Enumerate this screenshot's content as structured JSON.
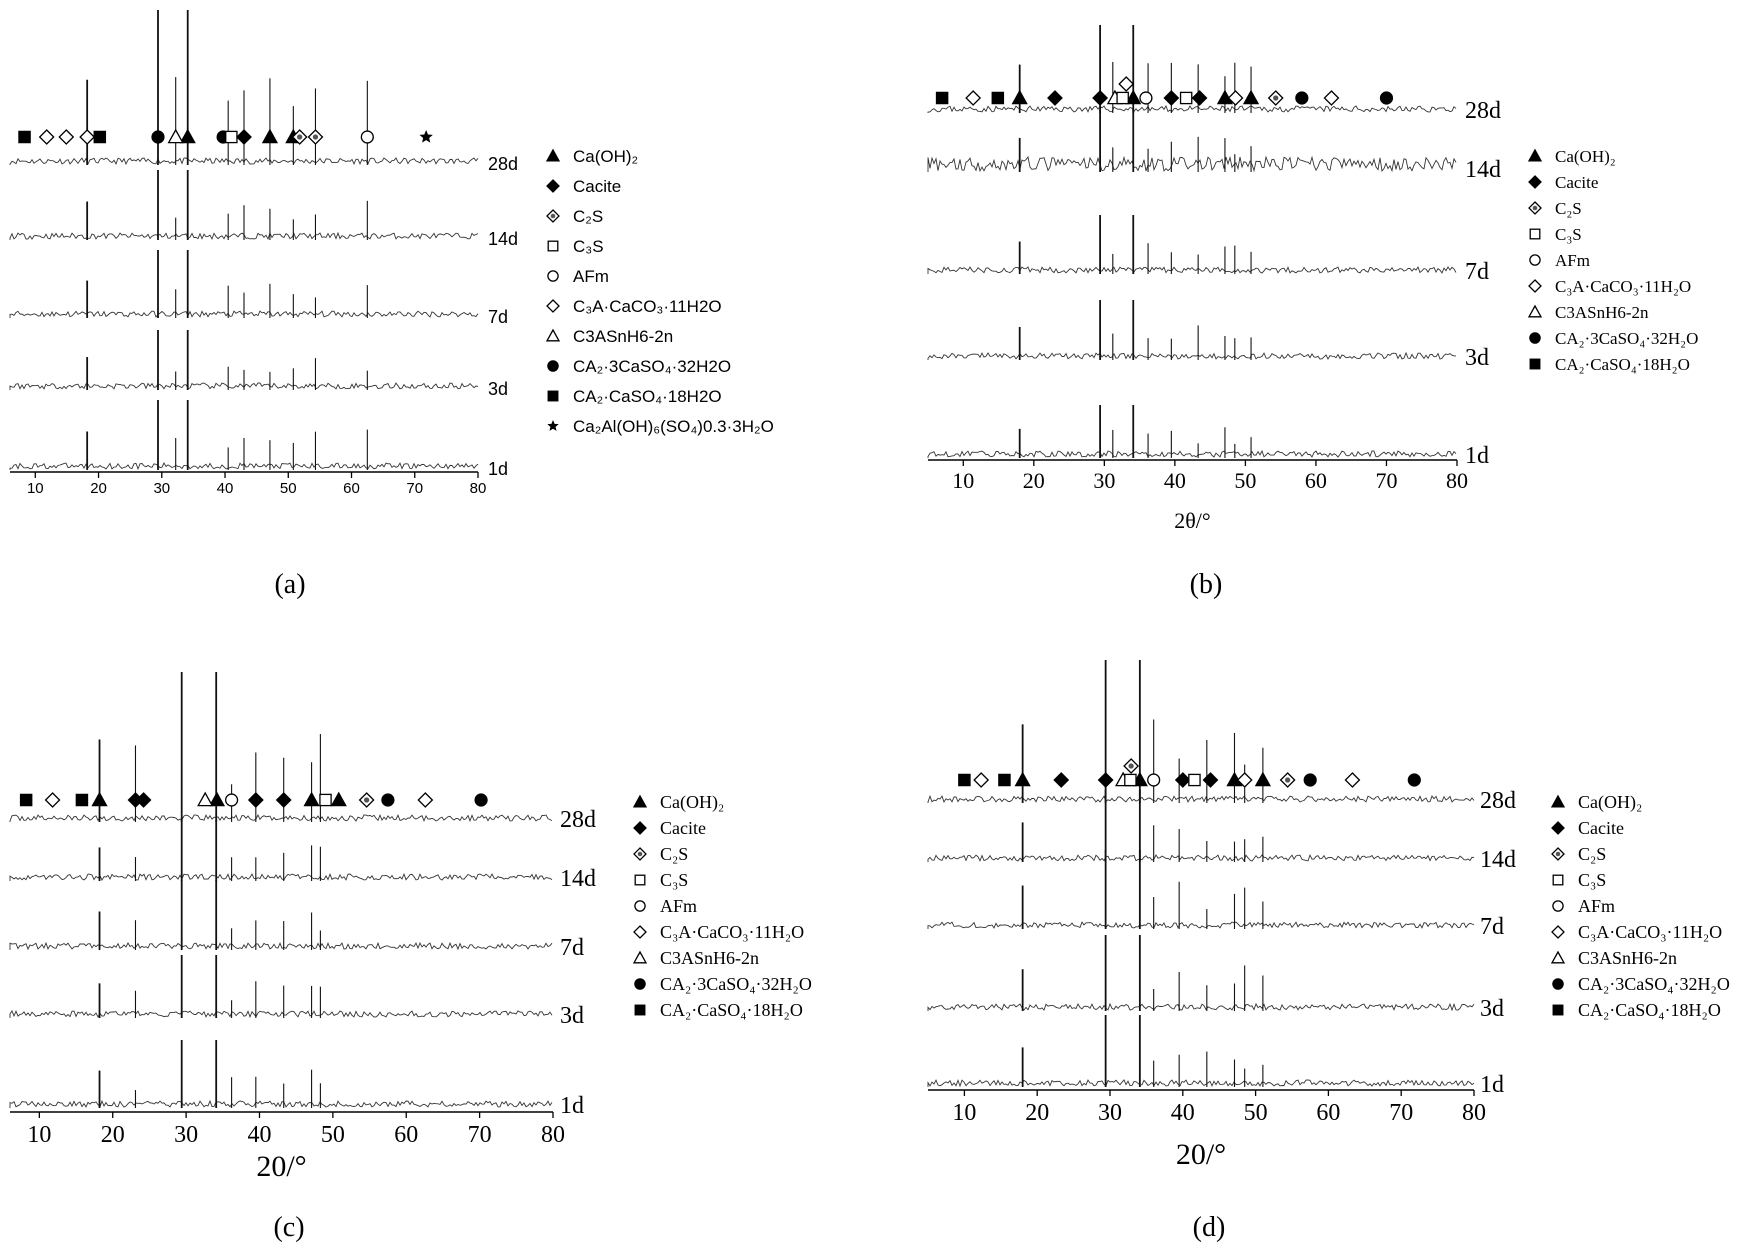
{
  "figure": {
    "panel_captions": [
      "(a)",
      "(b)",
      "(c)",
      "(d)"
    ]
  },
  "chart_data": [
    {
      "type": "line",
      "panel": "(a)",
      "xlabel": "",
      "xlim": [
        6,
        80
      ],
      "xticks": [
        10,
        20,
        30,
        40,
        50,
        60,
        70,
        80
      ],
      "series_labels": [
        "28d",
        "14d",
        "7d",
        "3d",
        "1d"
      ],
      "peaks": [
        18.2,
        29.4,
        34.1,
        47.1,
        50.8,
        32.2,
        40.5,
        43.0,
        54.3,
        62.5
      ],
      "legend": [
        {
          "marker": "triangle-filled",
          "label": "Ca(OH)₂"
        },
        {
          "marker": "diamond-filled",
          "label": "Cacite"
        },
        {
          "marker": "diamond-dot",
          "label": "C₂S"
        },
        {
          "marker": "square-open",
          "label": "C₃S"
        },
        {
          "marker": "circle-open",
          "label": "AFm"
        },
        {
          "marker": "diamond-open",
          "label": "C₃A·CaCO₃·11H2O"
        },
        {
          "marker": "triangle-open",
          "label": "C3ASnH6-2n"
        },
        {
          "marker": "circle-filled",
          "label": "CA₂·3CaSO₄·32H2O"
        },
        {
          "marker": "square-filled",
          "label": "CA₂·CaSO₄·18H2O"
        },
        {
          "marker": "star-filled",
          "label": "Ca₂Al(OH)₆(SO₄)0.3·3H₂O"
        }
      ],
      "phase_markers": [
        {
          "marker": "triangle-filled",
          "x": 34.1
        },
        {
          "marker": "triangle-filled",
          "x": 47.1
        },
        {
          "marker": "triangle-filled",
          "x": 50.8
        },
        {
          "marker": "circle-filled",
          "x": 29.4
        },
        {
          "marker": "diamond-open",
          "x": 18.2
        },
        {
          "marker": "diamond-open",
          "x": 11.8
        },
        {
          "marker": "diamond-open",
          "x": 14.9
        },
        {
          "marker": "triangle-open",
          "x": 32.2
        },
        {
          "marker": "square-filled",
          "x": 8.3
        },
        {
          "marker": "square-filled",
          "x": 20.2
        },
        {
          "marker": "circle-filled",
          "x": 39.7
        },
        {
          "marker": "square-open",
          "x": 41.0
        },
        {
          "marker": "diamond-filled",
          "x": 43.0
        },
        {
          "marker": "diamond-dot",
          "x": 51.8
        },
        {
          "marker": "diamond-dot",
          "x": 54.3
        },
        {
          "marker": "circle-open",
          "x": 62.5
        },
        {
          "marker": "star-filled",
          "x": 71.8
        }
      ]
    },
    {
      "type": "line",
      "panel": "(b)",
      "xlabel": "2θ/°",
      "xlim": [
        5,
        80
      ],
      "xticks": [
        10,
        20,
        30,
        40,
        50,
        60,
        70,
        80
      ],
      "series_labels": [
        "28d",
        "14d",
        "7d",
        "3d",
        "1d"
      ],
      "peaks": [
        18.0,
        29.4,
        34.1,
        47.1,
        48.5,
        39.5,
        43.3,
        31.2,
        36.2,
        50.8
      ],
      "legend": [
        {
          "marker": "triangle-filled",
          "label": "Ca(OH)₂"
        },
        {
          "marker": "diamond-filled",
          "label": "Cacite"
        },
        {
          "marker": "diamond-dot",
          "label": "C₂S"
        },
        {
          "marker": "square-open",
          "label": "C₃S"
        },
        {
          "marker": "circle-open",
          "label": "AFm"
        },
        {
          "marker": "diamond-open",
          "label": "C₃A·CaCO₃·11H₂O"
        },
        {
          "marker": "triangle-open",
          "label": "C3ASnH6-2n"
        },
        {
          "marker": "circle-filled",
          "label": "CA₂·3CaSO₄·32H₂O"
        },
        {
          "marker": "square-filled",
          "label": "CA₂·CaSO₄·18H₂O"
        }
      ],
      "phase_markers": [
        {
          "marker": "square-filled",
          "x": 7.0
        },
        {
          "marker": "diamond-open",
          "x": 11.4
        },
        {
          "marker": "square-filled",
          "x": 14.9
        },
        {
          "marker": "triangle-filled",
          "x": 18.0
        },
        {
          "marker": "diamond-filled",
          "x": 23.0
        },
        {
          "marker": "diamond-filled",
          "x": 29.4
        },
        {
          "marker": "triangle-filled",
          "x": 34.1
        },
        {
          "marker": "triangle-open",
          "x": 31.5
        },
        {
          "marker": "square-open",
          "x": 32.6
        },
        {
          "marker": "diamond-open",
          "x": 33.1
        },
        {
          "marker": "circle-open",
          "x": 35.9
        },
        {
          "marker": "diamond-filled",
          "x": 39.5
        },
        {
          "marker": "diamond-filled",
          "x": 43.5
        },
        {
          "marker": "square-open",
          "x": 41.6
        },
        {
          "marker": "triangle-filled",
          "x": 47.1
        },
        {
          "marker": "diamond-open",
          "x": 48.6
        },
        {
          "marker": "triangle-filled",
          "x": 50.8
        },
        {
          "marker": "diamond-dot",
          "x": 54.3
        },
        {
          "marker": "circle-filled",
          "x": 58.0
        },
        {
          "marker": "diamond-open",
          "x": 62.2
        },
        {
          "marker": "circle-filled",
          "x": 70.0
        }
      ]
    },
    {
      "type": "line",
      "panel": "(c)",
      "xlabel": "20/°",
      "xlim": [
        6,
        80
      ],
      "xticks": [
        10,
        20,
        30,
        40,
        50,
        60,
        70,
        80
      ],
      "series_labels": [
        "28d",
        "14d",
        "7d",
        "3d",
        "1d"
      ],
      "peaks": [
        18.2,
        29.4,
        34.1,
        47.1,
        48.3,
        39.5,
        43.3,
        23.1,
        36.2
      ],
      "legend": [
        {
          "marker": "triangle-filled",
          "label": "Ca(OH)₂"
        },
        {
          "marker": "diamond-filled",
          "label": "Cacite"
        },
        {
          "marker": "diamond-dot",
          "label": "C₂S"
        },
        {
          "marker": "square-open",
          "label": "C₃S"
        },
        {
          "marker": "circle-open",
          "label": "AFm"
        },
        {
          "marker": "diamond-open",
          "label": "C₃A·CaCO₃·11H₂O"
        },
        {
          "marker": "triangle-open",
          "label": "C3ASnH6-2n"
        },
        {
          "marker": "circle-filled",
          "label": "CA₂·3CaSO₄·32H₂O"
        },
        {
          "marker": "square-filled",
          "label": "CA₂·CaSO₄·18H₂O"
        }
      ],
      "phase_markers": [
        {
          "marker": "square-filled",
          "x": 8.2
        },
        {
          "marker": "diamond-open",
          "x": 11.8
        },
        {
          "marker": "square-filled",
          "x": 15.8
        },
        {
          "marker": "triangle-filled",
          "x": 18.2
        },
        {
          "marker": "diamond-filled",
          "x": 23.1
        },
        {
          "marker": "diamond-filled",
          "x": 24.2
        },
        {
          "marker": "triangle-filled",
          "x": 34.2
        },
        {
          "marker": "triangle-open",
          "x": 32.6
        },
        {
          "marker": "circle-open",
          "x": 36.2
        },
        {
          "marker": "diamond-filled",
          "x": 39.5
        },
        {
          "marker": "diamond-filled",
          "x": 43.3
        },
        {
          "marker": "triangle-filled",
          "x": 47.1
        },
        {
          "marker": "square-open",
          "x": 49.0
        },
        {
          "marker": "triangle-filled",
          "x": 50.8
        },
        {
          "marker": "diamond-dot",
          "x": 54.6
        },
        {
          "marker": "circle-filled",
          "x": 57.5
        },
        {
          "marker": "diamond-open",
          "x": 62.6
        },
        {
          "marker": "circle-filled",
          "x": 70.2
        }
      ]
    },
    {
      "type": "line",
      "panel": "(d)",
      "xlabel": "20/°",
      "xlim": [
        5,
        80
      ],
      "xticks": [
        10,
        20,
        30,
        40,
        50,
        60,
        70,
        80
      ],
      "series_labels": [
        "28d",
        "14d",
        "7d",
        "3d",
        "1d"
      ],
      "peaks": [
        18.0,
        29.4,
        34.1,
        47.1,
        48.5,
        39.5,
        43.3,
        51.0,
        36.0
      ],
      "legend": [
        {
          "marker": "triangle-filled",
          "label": "Ca(OH)₂"
        },
        {
          "marker": "diamond-filled",
          "label": "Cacite"
        },
        {
          "marker": "diamond-dot",
          "label": "C₂S"
        },
        {
          "marker": "square-open",
          "label": "C₃S"
        },
        {
          "marker": "circle-open",
          "label": "AFm"
        },
        {
          "marker": "diamond-open",
          "label": "C₃A·CaCO₃·11H₂O"
        },
        {
          "marker": "triangle-open",
          "label": "C3ASnH6-2n"
        },
        {
          "marker": "circle-filled",
          "label": "CA₂·3CaSO₄·32H₂O"
        },
        {
          "marker": "square-filled",
          "label": "CA₂·CaSO₄·18H₂O"
        }
      ],
      "phase_markers": [
        {
          "marker": "square-filled",
          "x": 10.0
        },
        {
          "marker": "diamond-open",
          "x": 12.3
        },
        {
          "marker": "square-filled",
          "x": 15.5
        },
        {
          "marker": "triangle-filled",
          "x": 18.0
        },
        {
          "marker": "diamond-filled",
          "x": 23.3
        },
        {
          "marker": "diamond-filled",
          "x": 29.4
        },
        {
          "marker": "triangle-filled",
          "x": 34.1
        },
        {
          "marker": "triangle-open",
          "x": 31.8
        },
        {
          "marker": "square-open",
          "x": 32.8
        },
        {
          "marker": "diamond-dot",
          "x": 32.9
        },
        {
          "marker": "circle-open",
          "x": 36.0
        },
        {
          "marker": "diamond-filled",
          "x": 40.0
        },
        {
          "marker": "square-open",
          "x": 41.6
        },
        {
          "marker": "diamond-filled",
          "x": 43.8
        },
        {
          "marker": "triangle-filled",
          "x": 47.1
        },
        {
          "marker": "diamond-open",
          "x": 48.5
        },
        {
          "marker": "triangle-filled",
          "x": 51.0
        },
        {
          "marker": "diamond-dot",
          "x": 54.4
        },
        {
          "marker": "circle-filled",
          "x": 57.5
        },
        {
          "marker": "diamond-open",
          "x": 63.3
        },
        {
          "marker": "circle-filled",
          "x": 71.8
        }
      ]
    }
  ]
}
